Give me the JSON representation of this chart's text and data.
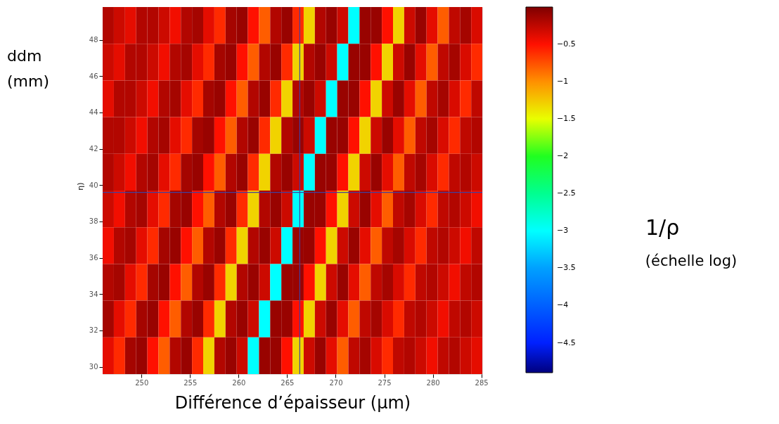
{
  "chart_data": {
    "type": "heatmap",
    "xlabel": "Différence d’épaisseur (µm)",
    "ylabel": "ddm (mm)",
    "clabel": "1/ρ",
    "annotations": [
      "η)",
      "(échelle log)"
    ],
    "x": [
      246.58,
      247.73,
      248.88,
      250.03,
      251.18,
      252.33,
      253.48,
      254.63,
      255.78,
      256.93,
      258.08,
      259.23,
      260.38,
      261.53,
      262.68,
      263.83,
      264.98,
      266.13,
      267.28,
      268.43,
      269.58,
      270.73,
      271.88,
      273.03,
      274.18,
      275.33,
      276.48,
      277.63,
      278.78,
      279.93,
      281.08,
      282.23,
      283.38,
      284.53
    ],
    "y": [
      48.79,
      46.77,
      44.75,
      42.73,
      40.71,
      38.69,
      36.67,
      34.65,
      32.63,
      30.61
    ],
    "xlim": [
      246,
      285.1
    ],
    "ylim": [
      29.6,
      49.8
    ],
    "xticks": [
      250,
      255,
      260,
      265,
      270,
      275,
      280,
      285
    ],
    "yticks": [
      30,
      32,
      34,
      36,
      38,
      40,
      42,
      44,
      46,
      48
    ],
    "clim": [
      -4.9,
      0
    ],
    "cticks": [
      {
        "value": -0.5,
        "label": "−0.5"
      },
      {
        "value": -1,
        "label": "−1"
      },
      {
        "value": -1.5,
        "label": "−1.5"
      },
      {
        "value": -2,
        "label": "−2"
      },
      {
        "value": -2.5,
        "label": "−2.5"
      },
      {
        "value": -3,
        "label": "−3"
      },
      {
        "value": -3.5,
        "label": "−3.5"
      },
      {
        "value": -4,
        "label": "−4"
      },
      {
        "value": -4.5,
        "label": "−4.5"
      }
    ],
    "cells": [
      [
        -0.2,
        -0.3,
        -0.4,
        -0.2,
        -0.2,
        -0.3,
        -0.45,
        -0.2,
        -0.15,
        -0.4,
        -0.6,
        -0.15,
        -0.1,
        -0.5,
        -0.8,
        -0.2,
        -0.1,
        -0.6,
        -1.3,
        -0.2,
        -0.1,
        -0.3,
        -3,
        -0.1,
        -0.1,
        -0.5,
        -1.3,
        -0.3,
        -0.1,
        -0.4,
        -0.8,
        -0.25,
        -0.15,
        -0.35
      ],
      [
        -0.3,
        -0.4,
        -0.2,
        -0.2,
        -0.3,
        -0.45,
        -0.2,
        -0.15,
        -0.4,
        -0.6,
        -0.15,
        -0.1,
        -0.5,
        -0.8,
        -0.2,
        -0.1,
        -0.6,
        -1.3,
        -0.2,
        -0.1,
        -0.3,
        -3,
        -0.1,
        -0.1,
        -0.5,
        -1.3,
        -0.3,
        -0.1,
        -0.4,
        -0.8,
        -0.25,
        -0.15,
        -0.35,
        -0.6
      ],
      [
        -0.4,
        -0.2,
        -0.2,
        -0.3,
        -0.45,
        -0.2,
        -0.15,
        -0.4,
        -0.6,
        -0.15,
        -0.1,
        -0.5,
        -0.8,
        -0.2,
        -0.1,
        -0.6,
        -1.3,
        -0.2,
        -0.1,
        -0.3,
        -3,
        -0.1,
        -0.1,
        -0.5,
        -1.3,
        -0.3,
        -0.1,
        -0.4,
        -0.8,
        -0.25,
        -0.15,
        -0.35,
        -0.6,
        -0.25
      ],
      [
        -0.2,
        -0.2,
        -0.3,
        -0.45,
        -0.2,
        -0.15,
        -0.4,
        -0.6,
        -0.15,
        -0.1,
        -0.5,
        -0.8,
        -0.2,
        -0.1,
        -0.6,
        -1.3,
        -0.2,
        -0.1,
        -0.3,
        -3,
        -0.1,
        -0.1,
        -0.5,
        -1.3,
        -0.3,
        -0.1,
        -0.4,
        -0.8,
        -0.25,
        -0.15,
        -0.35,
        -0.6,
        -0.25,
        -0.2
      ],
      [
        -0.2,
        -0.3,
        -0.45,
        -0.2,
        -0.15,
        -0.4,
        -0.6,
        -0.15,
        -0.1,
        -0.5,
        -0.8,
        -0.2,
        -0.1,
        -0.6,
        -1.3,
        -0.2,
        -0.1,
        -0.3,
        -3,
        -0.1,
        -0.1,
        -0.5,
        -1.3,
        -0.3,
        -0.1,
        -0.4,
        -0.8,
        -0.25,
        -0.15,
        -0.35,
        -0.6,
        -0.25,
        -0.2,
        -0.3
      ],
      [
        -0.3,
        -0.45,
        -0.2,
        -0.15,
        -0.4,
        -0.6,
        -0.15,
        -0.1,
        -0.5,
        -0.8,
        -0.2,
        -0.1,
        -0.6,
        -1.3,
        -0.2,
        -0.1,
        -0.3,
        -3,
        -0.1,
        -0.1,
        -0.5,
        -1.3,
        -0.3,
        -0.1,
        -0.4,
        -0.8,
        -0.25,
        -0.15,
        -0.35,
        -0.6,
        -0.25,
        -0.2,
        -0.3,
        -0.45
      ],
      [
        -0.45,
        -0.2,
        -0.15,
        -0.4,
        -0.6,
        -0.15,
        -0.1,
        -0.5,
        -0.8,
        -0.2,
        -0.1,
        -0.6,
        -1.3,
        -0.2,
        -0.1,
        -0.3,
        -3,
        -0.1,
        -0.1,
        -0.5,
        -1.3,
        -0.3,
        -0.1,
        -0.4,
        -0.8,
        -0.25,
        -0.15,
        -0.35,
        -0.6,
        -0.25,
        -0.2,
        -0.3,
        -0.45,
        -0.25
      ],
      [
        -0.2,
        -0.15,
        -0.4,
        -0.6,
        -0.15,
        -0.1,
        -0.5,
        -0.8,
        -0.2,
        -0.1,
        -0.6,
        -1.3,
        -0.2,
        -0.1,
        -0.3,
        -3,
        -0.1,
        -0.1,
        -0.5,
        -1.3,
        -0.3,
        -0.1,
        -0.4,
        -0.8,
        -0.25,
        -0.15,
        -0.35,
        -0.6,
        -0.25,
        -0.2,
        -0.3,
        -0.45,
        -0.25,
        -0.2
      ],
      [
        -0.15,
        -0.4,
        -0.6,
        -0.15,
        -0.1,
        -0.5,
        -0.8,
        -0.2,
        -0.1,
        -0.6,
        -1.3,
        -0.2,
        -0.1,
        -0.3,
        -3,
        -0.1,
        -0.1,
        -0.5,
        -1.3,
        -0.3,
        -0.1,
        -0.4,
        -0.8,
        -0.25,
        -0.15,
        -0.35,
        -0.6,
        -0.25,
        -0.2,
        -0.3,
        -0.45,
        -0.25,
        -0.2,
        -0.3
      ],
      [
        -0.4,
        -0.6,
        -0.15,
        -0.1,
        -0.5,
        -0.8,
        -0.2,
        -0.1,
        -0.6,
        -1.3,
        -0.2,
        -0.1,
        -0.3,
        -3,
        -0.1,
        -0.1,
        -0.5,
        -1.3,
        -0.3,
        -0.1,
        -0.4,
        -0.8,
        -0.25,
        -0.15,
        -0.35,
        -0.6,
        -0.25,
        -0.2,
        -0.3,
        -0.45,
        -0.25,
        -0.2,
        -0.3,
        -0.4
      ]
    ],
    "ref_lines": [
      {
        "axis": "x",
        "value": 266.3,
        "color": "#4040a0"
      },
      {
        "axis": "y",
        "value": 39.6,
        "color": "#4040a0"
      }
    ]
  }
}
